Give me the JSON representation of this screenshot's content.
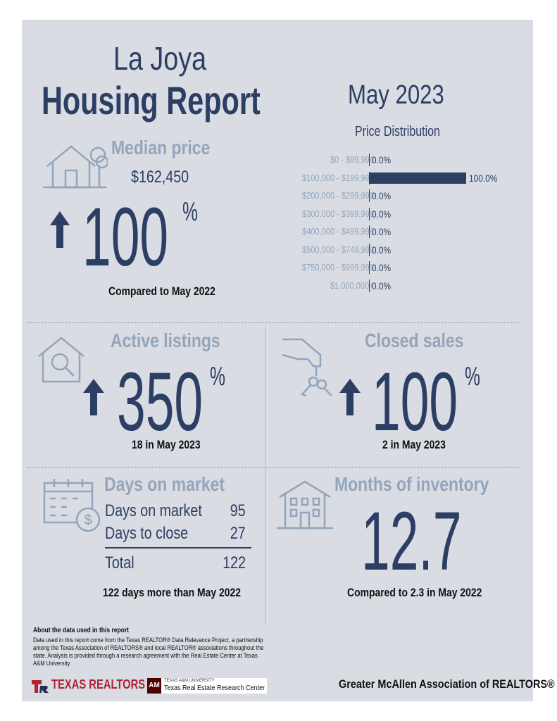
{
  "header": {
    "city": "La Joya",
    "report": "Housing Report",
    "period": "May 2023"
  },
  "median_price": {
    "label": "Median price",
    "value": "$162,450",
    "change": "100",
    "pct": "%",
    "caption": "Compared to May 2022"
  },
  "price_distribution": {
    "title": "Price Distribution",
    "rows": [
      {
        "range": "$0 - $99,999",
        "value": "0.0%"
      },
      {
        "range": "$100,000 - $199,999",
        "value": "100.0%"
      },
      {
        "range": "$200,000 - $299,999",
        "value": "0.0%"
      },
      {
        "range": "$300,000 - $399,999",
        "value": "0.0%"
      },
      {
        "range": "$400,000 - $499,999",
        "value": "0.0%"
      },
      {
        "range": "$500,000 - $749,999",
        "value": "0.0%"
      },
      {
        "range": "$750,000 - $999,999",
        "value": "0.0%"
      },
      {
        "range": "$1,000,000+",
        "value": "0.0%"
      }
    ]
  },
  "chart_data": {
    "type": "bar",
    "title": "Price Distribution",
    "categories": [
      "$0 - $99,999",
      "$100,000 - $199,999",
      "$200,000 - $299,999",
      "$300,000 - $399,999",
      "$400,000 - $499,999",
      "$500,000 - $749,999",
      "$750,000 - $999,999",
      "$1,000,000+"
    ],
    "values": [
      0.0,
      100.0,
      0.0,
      0.0,
      0.0,
      0.0,
      0.0,
      0.0
    ],
    "orientation": "horizontal",
    "xlim": [
      0,
      100
    ]
  },
  "active_listings": {
    "label": "Active listings",
    "change": "350",
    "pct": "%",
    "caption": "18 in May 2023"
  },
  "closed_sales": {
    "label": "Closed sales",
    "change": "100",
    "pct": "%",
    "caption": "2 in May 2023"
  },
  "days_on_market": {
    "label": "Days on market",
    "rows": [
      {
        "name": "Days on market",
        "value": "95"
      },
      {
        "name": "Days to close",
        "value": "27"
      }
    ],
    "total_label": "Total",
    "total_value": "122",
    "caption": "122 days more than May 2022"
  },
  "months_inventory": {
    "label": "Months of inventory",
    "value": "12.7",
    "caption": "Compared to 2.3 in May 2022"
  },
  "footer": {
    "about_title": "About the data used in this report",
    "about_text": "Data used in this report come from the Texas REALTOR® Data Relevance Project, a partnership among the Texas Association of REALTORS® and local REALTOR® associations throughout the state. Analysis is provided through a research agreement with the Real Estate Center at Texas A&M University.",
    "texas_realtors": "TEXAS REALTORS",
    "tamu_small": "TEXAS A&M UNIVERSITY",
    "tamu_center": "Texas Real Estate Research Center",
    "association": "Greater McAllen Association of REALTORS®"
  },
  "colors": {
    "background": "#d9dde3",
    "dark": "#2c3e63",
    "light": "#93a5bb",
    "brand_red": "#b22234"
  },
  "icons": [
    "house-tree-icon",
    "house-search-icon",
    "hand-keys-icon",
    "calendar-dollar-icon",
    "apartment-building-icon",
    "arrow-up-icon"
  ]
}
